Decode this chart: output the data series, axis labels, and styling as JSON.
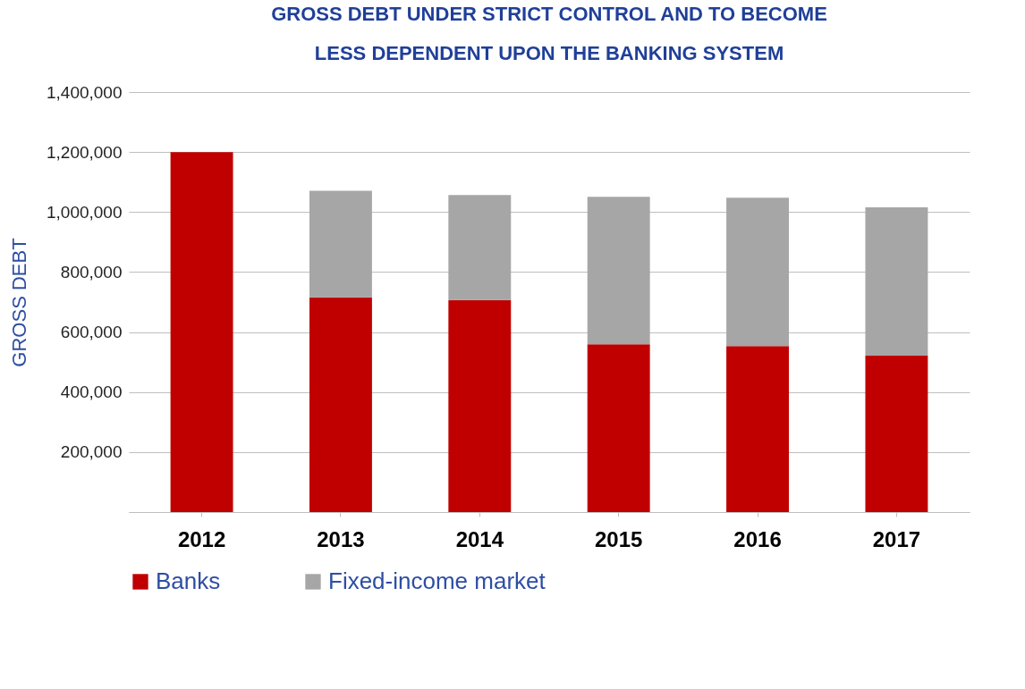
{
  "chart_data": {
    "type": "bar",
    "title": "GROSS DEBT UNDER STRICT CONTROL AND TO BECOME\nLESS DEPENDENT UPON THE BANKING SYSTEM",
    "ylabel": "GROSS DEBT",
    "categories": [
      "2012",
      "2013",
      "2014",
      "2015",
      "2016",
      "2017"
    ],
    "stacked": true,
    "series": [
      {
        "name": "Banks",
        "color": "#c00000",
        "values": [
          1200000,
          716000,
          707000,
          559000,
          553000,
          521000
        ]
      },
      {
        "name": "Fixed-income market",
        "color": "#a6a6a6",
        "values": [
          null,
          355000,
          350000,
          492000,
          495000,
          495000
        ]
      }
    ],
    "ylim": [
      0,
      1400000
    ],
    "yticks": [
      {
        "value": 0,
        "label": null
      },
      {
        "value": 200000,
        "label": "200,000"
      },
      {
        "value": 400000,
        "label": "400,000"
      },
      {
        "value": 600000,
        "label": "600,000"
      },
      {
        "value": 800000,
        "label": "800,000"
      },
      {
        "value": 1000000,
        "label": "1,000,000"
      },
      {
        "value": 1200000,
        "label": "1,200,000"
      },
      {
        "value": 1400000,
        "label": "1,400,000"
      }
    ],
    "grid": "y",
    "legend": "bottom"
  }
}
